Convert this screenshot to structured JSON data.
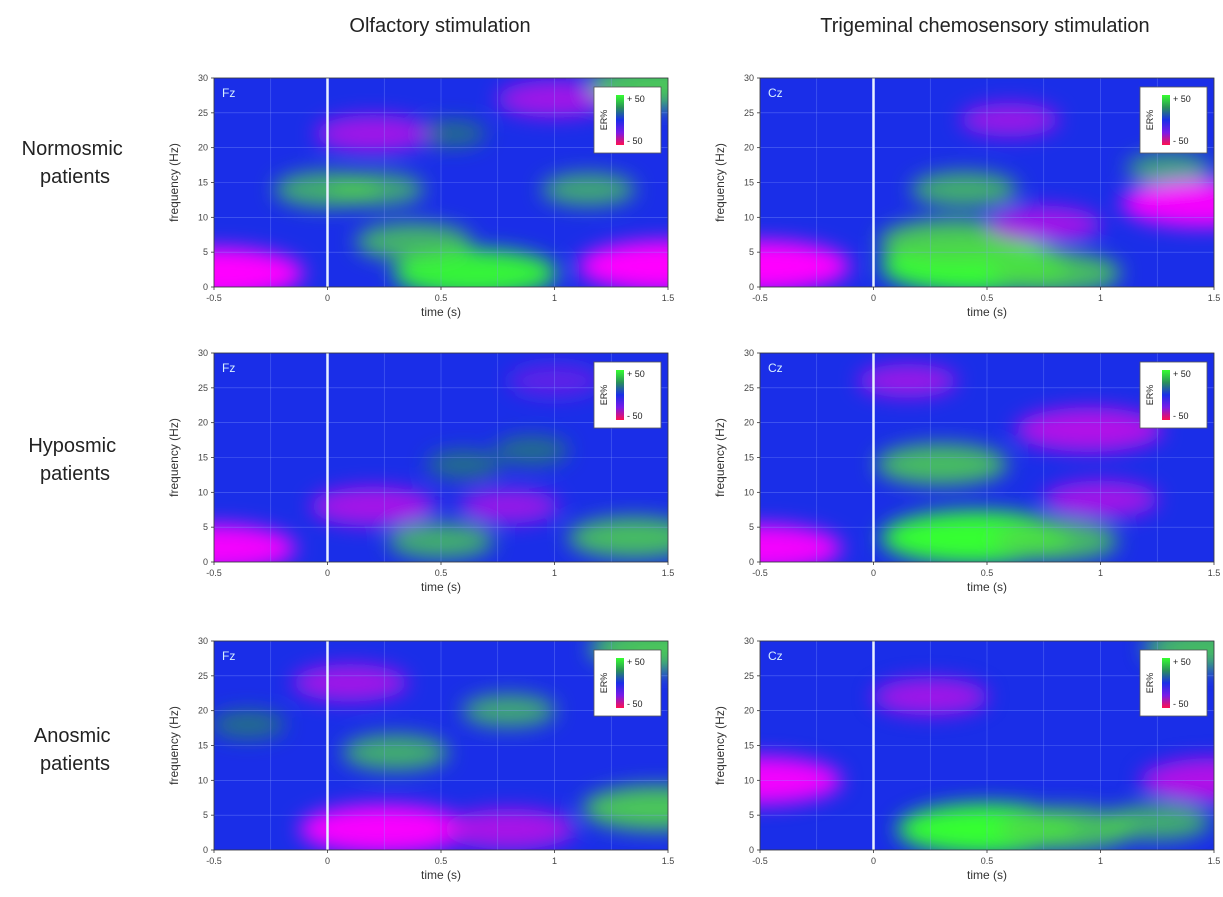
{
  "columns": [
    "Olfactory stimulation",
    "Trigeminal chemosensory stimulation"
  ],
  "rows": [
    [
      "Normosmic",
      "patients"
    ],
    [
      "Hyposmic",
      "patients"
    ],
    [
      "Anosmic",
      "patients"
    ]
  ],
  "colors": {
    "background": "#1a2ee8",
    "low": "#ff00ff",
    "mid_low": "#7a1ae8",
    "mid_high": "#2a8f5a",
    "high": "#36ff30",
    "stimulus_line": "#e8f0ff",
    "grid": "#8aa0ff",
    "electrode_label": "#d8f0ff"
  },
  "chart_data": [
    {
      "type": "heatmap",
      "panel": "normosmic-olfactory",
      "row": 0,
      "col": 0,
      "electrode": "Fz",
      "xlabel": "time (s)",
      "ylabel": "frequency (Hz)",
      "xlim": [
        -0.5,
        1.5
      ],
      "ylim": [
        0,
        30
      ],
      "xticks": [
        "-0.5",
        "0",
        "0.5",
        "1",
        "1.5"
      ],
      "yticks": [
        "0",
        "5",
        "10",
        "15",
        "20",
        "25",
        "30"
      ],
      "stimulus_onset": 0,
      "colorbar": {
        "label": "ER%",
        "max": "+ 50",
        "min": "- 50"
      },
      "blobs": [
        {
          "t": 0.65,
          "f": 2,
          "value": 40
        },
        {
          "t": 0.38,
          "f": 6.5,
          "value": 25
        },
        {
          "t": 0.0,
          "f": 14,
          "value": 22
        },
        {
          "t": 0.22,
          "f": 14,
          "value": 18
        },
        {
          "t": 1.15,
          "f": 14,
          "value": 18
        },
        {
          "t": 0.55,
          "f": 22,
          "value": 10
        },
        {
          "t": -0.5,
          "f": 2,
          "value": -45
        },
        {
          "t": 1.5,
          "f": 3,
          "value": -45
        },
        {
          "t": 0.2,
          "f": 22,
          "value": -25
        },
        {
          "t": 1.0,
          "f": 27,
          "value": -25
        },
        {
          "t": 1.48,
          "f": 29,
          "value": 35
        }
      ]
    },
    {
      "type": "heatmap",
      "panel": "normosmic-trigeminal",
      "row": 0,
      "col": 1,
      "electrode": "Cz",
      "xlabel": "time (s)",
      "ylabel": "frequency (Hz)",
      "xlim": [
        -0.5,
        1.5
      ],
      "ylim": [
        0,
        30
      ],
      "xticks": [
        "-0.5",
        "0",
        "0.5",
        "1",
        "1.5"
      ],
      "yticks": [
        "0",
        "5",
        "10",
        "15",
        "20",
        "25",
        "30"
      ],
      "stimulus_onset": 0,
      "colorbar": {
        "label": "ER%",
        "max": "+ 50",
        "min": "- 50"
      },
      "blobs": [
        {
          "t": 0.45,
          "f": 3,
          "value": 48
        },
        {
          "t": 0.35,
          "f": 6.5,
          "value": 35
        },
        {
          "t": 0.8,
          "f": 2,
          "value": 30
        },
        {
          "t": 0.4,
          "f": 14,
          "value": 22
        },
        {
          "t": 1.3,
          "f": 17,
          "value": 15
        },
        {
          "t": -0.5,
          "f": 3,
          "value": -45
        },
        {
          "t": 1.45,
          "f": 12,
          "value": -40
        },
        {
          "t": 0.75,
          "f": 9,
          "value": -25
        },
        {
          "t": 0.6,
          "f": 24,
          "value": -20
        }
      ]
    },
    {
      "type": "heatmap",
      "panel": "hyposmic-olfactory",
      "row": 1,
      "col": 0,
      "electrode": "Fz",
      "xlabel": "time (s)",
      "ylabel": "frequency (Hz)",
      "xlim": [
        -0.5,
        1.5
      ],
      "ylim": [
        0,
        30
      ],
      "xticks": [
        "-0.5",
        "0",
        "0.5",
        "1",
        "1.5"
      ],
      "yticks": [
        "0",
        "5",
        "10",
        "15",
        "20",
        "25",
        "30"
      ],
      "stimulus_onset": 0,
      "colorbar": {
        "label": "ER%",
        "max": "+ 50",
        "min": "- 50"
      },
      "blobs": [
        {
          "t": 0.5,
          "f": 3,
          "value": 22
        },
        {
          "t": 1.35,
          "f": 3.5,
          "value": 30
        },
        {
          "t": 0.6,
          "f": 14,
          "value": 12
        },
        {
          "t": 0.9,
          "f": 16,
          "value": 12
        },
        {
          "t": 0.2,
          "f": 8,
          "value": -28
        },
        {
          "t": 0.8,
          "f": 8,
          "value": -20
        },
        {
          "t": -0.5,
          "f": 2,
          "value": -40
        },
        {
          "t": 1.0,
          "f": 26,
          "value": -18
        }
      ]
    },
    {
      "type": "heatmap",
      "panel": "hyposmic-trigeminal",
      "row": 1,
      "col": 1,
      "electrode": "Cz",
      "xlabel": "time (s)",
      "ylabel": "frequency (Hz)",
      "xlim": [
        -0.5,
        1.5
      ],
      "ylim": [
        0,
        30
      ],
      "xticks": [
        "-0.5",
        "0",
        "0.5",
        "1",
        "1.5"
      ],
      "yticks": [
        "0",
        "5",
        "10",
        "15",
        "20",
        "25",
        "30"
      ],
      "stimulus_onset": 0,
      "colorbar": {
        "label": "ER%",
        "max": "+ 50",
        "min": "- 50"
      },
      "blobs": [
        {
          "t": 0.45,
          "f": 3.5,
          "value": 48
        },
        {
          "t": 0.3,
          "f": 14,
          "value": 30
        },
        {
          "t": 0.8,
          "f": 3,
          "value": 28
        },
        {
          "t": -0.5,
          "f": 2,
          "value": -40
        },
        {
          "t": 0.95,
          "f": 19,
          "value": -35
        },
        {
          "t": 1.0,
          "f": 9,
          "value": -25
        },
        {
          "t": 0.15,
          "f": 26,
          "value": -20
        }
      ]
    },
    {
      "type": "heatmap",
      "panel": "anosmic-olfactory",
      "row": 2,
      "col": 0,
      "electrode": "Fz",
      "xlabel": "time (s)",
      "ylabel": "frequency (Hz)",
      "xlim": [
        -0.5,
        1.5
      ],
      "ylim": [
        0,
        30
      ],
      "xticks": [
        "-0.5",
        "0",
        "0.5",
        "1",
        "1.5"
      ],
      "yticks": [
        "0",
        "5",
        "10",
        "15",
        "20",
        "25",
        "30"
      ],
      "stimulus_onset": 0,
      "colorbar": {
        "label": "ER%",
        "max": "+ 50",
        "min": "- 50"
      },
      "blobs": [
        {
          "t": 0.25,
          "f": 3,
          "value": -42
        },
        {
          "t": 0.8,
          "f": 3,
          "value": -30
        },
        {
          "t": 1.45,
          "f": 6,
          "value": 35
        },
        {
          "t": 0.3,
          "f": 14,
          "value": 22
        },
        {
          "t": 0.8,
          "f": 20,
          "value": 18
        },
        {
          "t": -0.35,
          "f": 18,
          "value": 12
        },
        {
          "t": 0.1,
          "f": 24,
          "value": -25
        },
        {
          "t": 1.48,
          "f": 29,
          "value": 35
        }
      ]
    },
    {
      "type": "heatmap",
      "panel": "anosmic-trigeminal",
      "row": 2,
      "col": 1,
      "electrode": "Cz",
      "xlabel": "time (s)",
      "ylabel": "frequency (Hz)",
      "xlim": [
        -0.5,
        1.5
      ],
      "ylim": [
        0,
        30
      ],
      "xticks": [
        "-0.5",
        "0",
        "0.5",
        "1",
        "1.5"
      ],
      "yticks": [
        "0",
        "5",
        "10",
        "15",
        "20",
        "25",
        "30"
      ],
      "stimulus_onset": 0,
      "colorbar": {
        "label": "ER%",
        "max": "+ 50",
        "min": "- 50"
      },
      "blobs": [
        {
          "t": 0.5,
          "f": 3,
          "value": 45
        },
        {
          "t": 0.85,
          "f": 3,
          "value": 32
        },
        {
          "t": 1.25,
          "f": 4,
          "value": 22
        },
        {
          "t": -0.5,
          "f": 10,
          "value": -40
        },
        {
          "t": 1.5,
          "f": 10,
          "value": -35
        },
        {
          "t": 0.25,
          "f": 22,
          "value": -25
        },
        {
          "t": 1.48,
          "f": 29,
          "value": 30
        }
      ]
    }
  ]
}
